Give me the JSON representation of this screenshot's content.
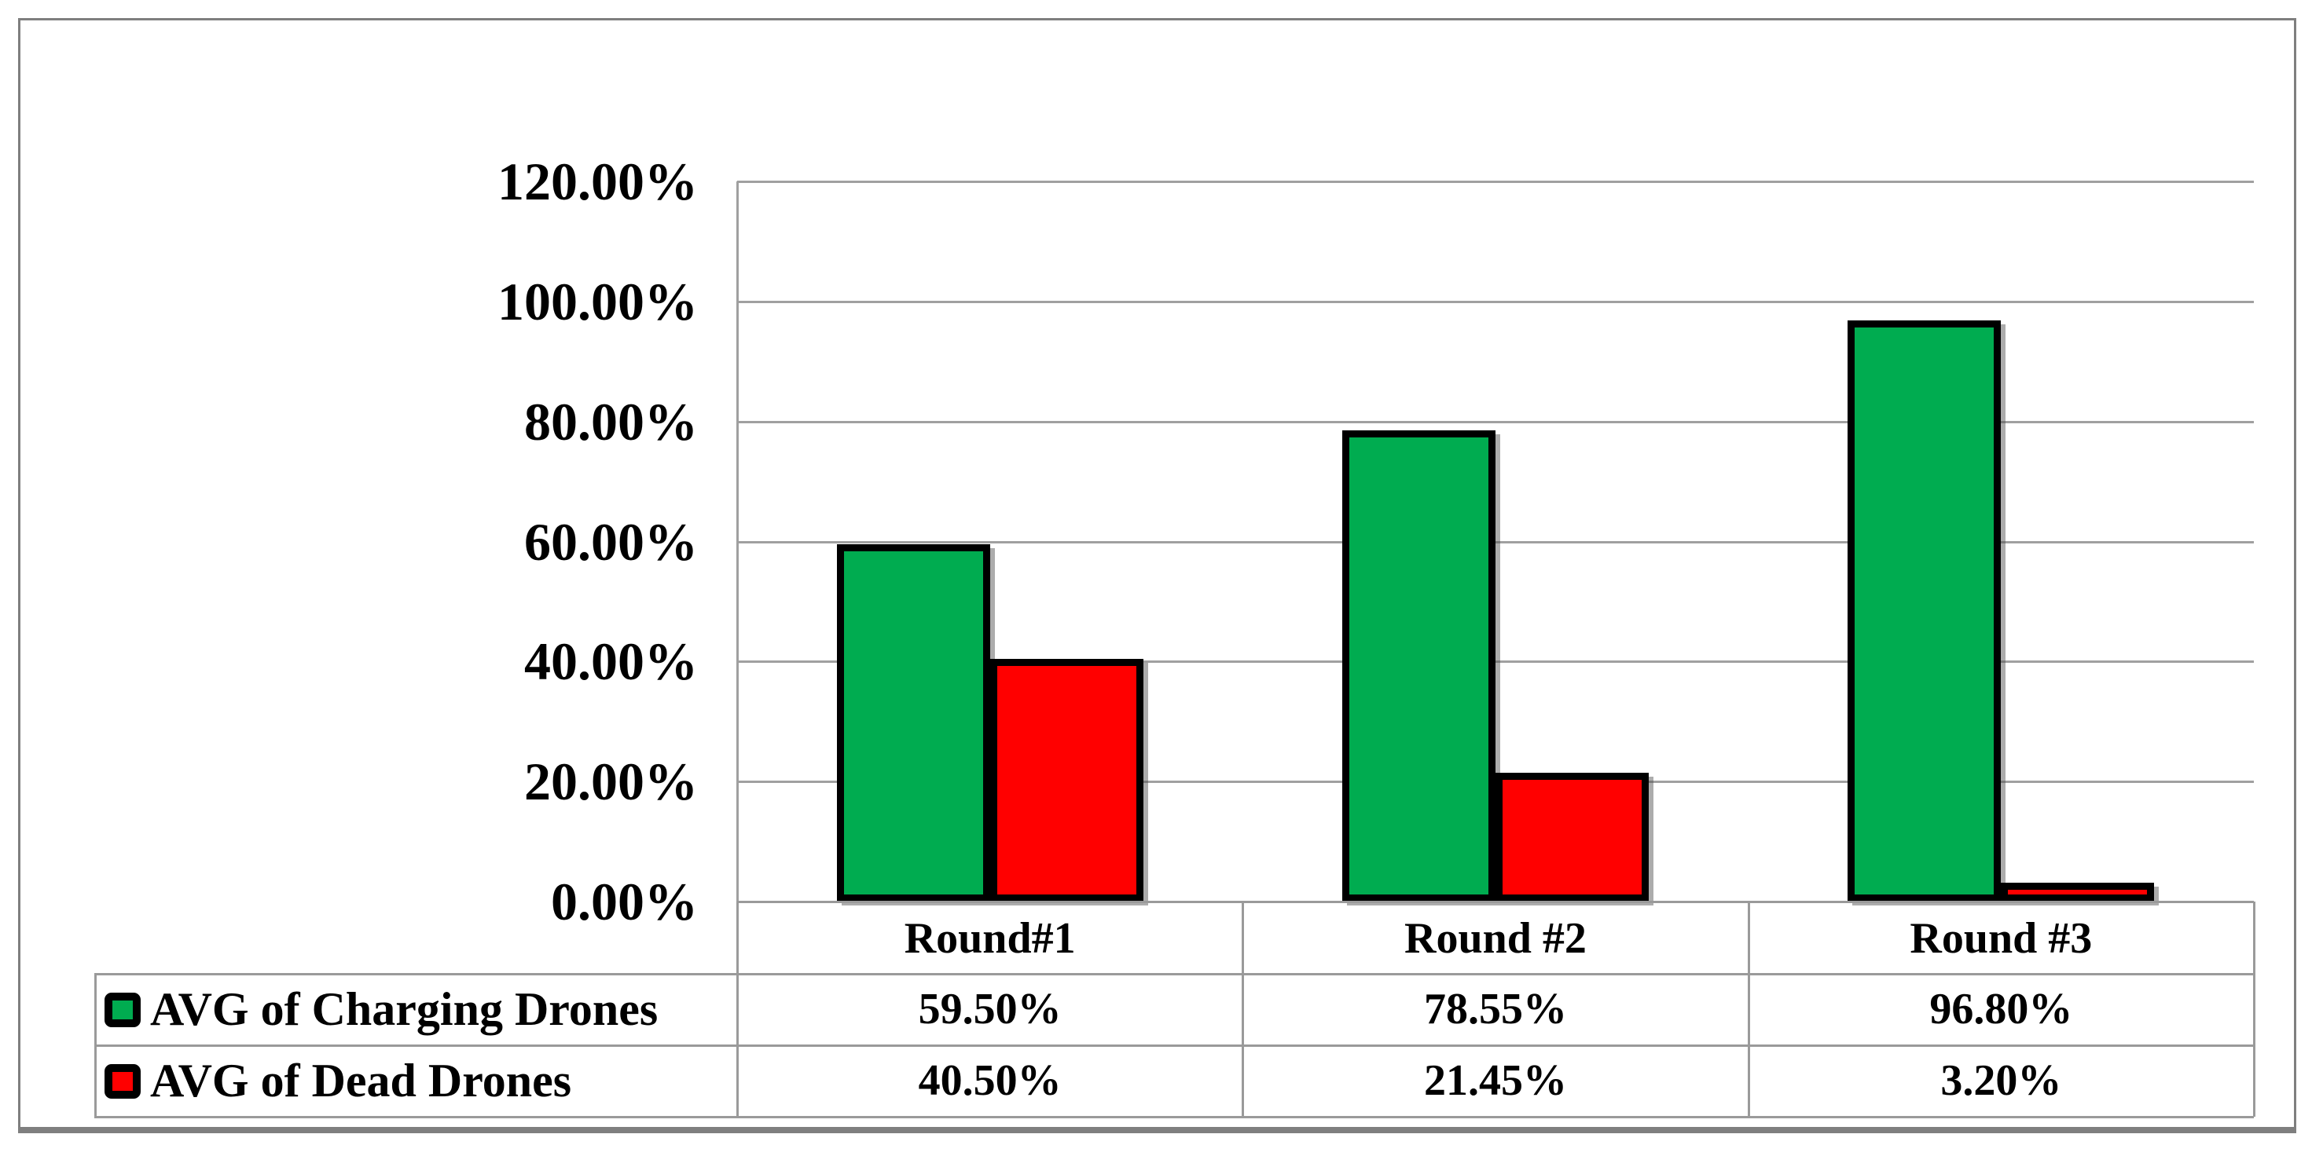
{
  "chart_data": {
    "type": "bar",
    "categories": [
      "Round#1",
      "Round #2",
      "Round #3"
    ],
    "series": [
      {
        "name": "AVG of Charging Drones",
        "color": "#00AC50",
        "values": [
          59.5,
          78.55,
          96.8
        ],
        "value_labels": [
          "59.50%",
          "78.55%",
          "96.80%"
        ]
      },
      {
        "name": "AVG of Dead Drones",
        "color": "#FF0000",
        "values": [
          40.5,
          21.45,
          3.2
        ],
        "value_labels": [
          "40.50%",
          "21.45%",
          "3.20%"
        ]
      }
    ],
    "y_axis": {
      "min": 0,
      "max": 120,
      "step": 20,
      "tick_labels": [
        "0.00%",
        "20.00%",
        "40.00%",
        "60.00%",
        "80.00%",
        "100.00%",
        "120.00%"
      ]
    },
    "grid": true,
    "legend_position": "table-left",
    "colors": {
      "grid_line": "#a0a0a0",
      "frame_border": "#7f7f7f",
      "bar_border": "#000000",
      "text": "#000000",
      "background": "#ffffff"
    }
  }
}
